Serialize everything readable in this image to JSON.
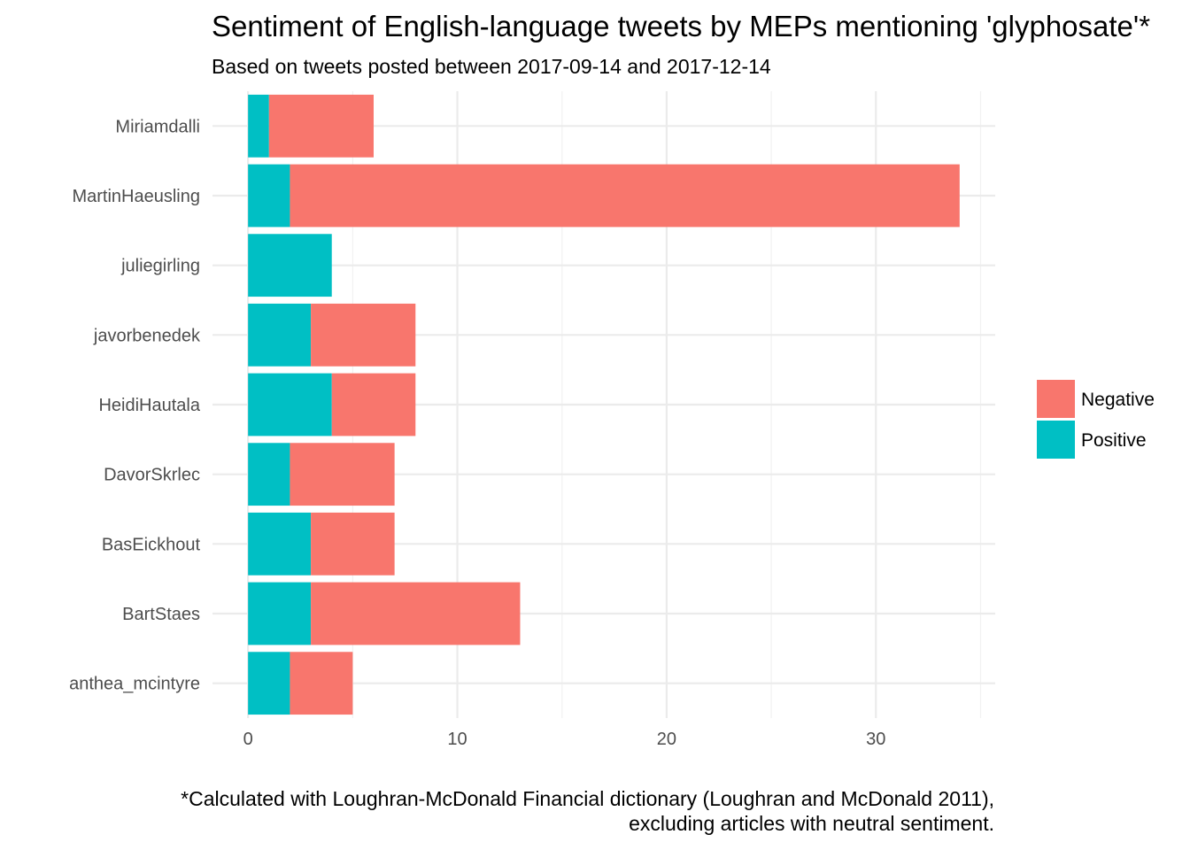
{
  "chart_data": {
    "type": "bar",
    "orientation": "horizontal",
    "stacked": true,
    "title": "Sentiment of English-language tweets by MEPs mentioning 'glyphosate'*",
    "subtitle": "Based on tweets posted between 2017-09-14 and 2017-12-14",
    "xlabel": "",
    "ylabel": "",
    "categories": [
      "Miriamdalli",
      "MartinHaeusling",
      "juliegirling",
      "javorbenedek",
      "HeidiHautala",
      "DavorSkrlec",
      "BasEickhout",
      "BartStaes",
      "anthea_mcintyre"
    ],
    "series": [
      {
        "name": "Positive",
        "color": "#00BFC4",
        "values": [
          1,
          2,
          4,
          3,
          4,
          2,
          3,
          3,
          2
        ]
      },
      {
        "name": "Negative",
        "color": "#F8766D",
        "values": [
          5,
          32,
          0,
          5,
          4,
          5,
          4,
          10,
          3
        ]
      }
    ],
    "xlim": [
      -1.7,
      35.7
    ],
    "xticks": [
      0,
      10,
      20,
      30
    ],
    "x_tick_labels": [
      "0",
      "10",
      "20",
      "30"
    ],
    "grid": true,
    "legend": {
      "position": "right",
      "entries": [
        {
          "label": "Negative",
          "color": "#F8766D"
        },
        {
          "label": "Positive",
          "color": "#00BFC4"
        }
      ]
    },
    "caption_lines": [
      "*Calculated with Loughran-McDonald Financial dictionary (Loughran and McDonald 2011),",
      "excluding articles with neutral sentiment."
    ]
  }
}
